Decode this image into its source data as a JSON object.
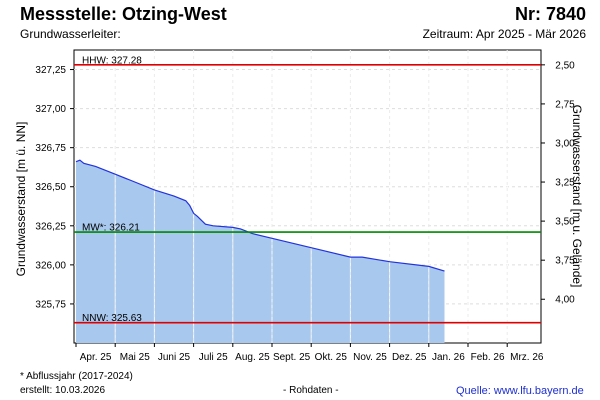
{
  "header": {
    "title": "Messstelle: Otzing-West",
    "number": "Nr: 7840",
    "aquifer": "Grundwasserleiter:",
    "period": "Zeitraum: Apr 2025 - Mär 2026"
  },
  "footer": {
    "footnote": "* Abflussjahr (2017-2024)",
    "created": "erstellt:  10.03.2026",
    "rawdata": "- Rohdaten -",
    "source": "Quelle: www.lfu.bayern.de"
  },
  "colors": {
    "fill": "#a8c8ee",
    "line": "#2233dd",
    "hhw": "#dd0000",
    "mw": "#008800",
    "nnw": "#dd0000",
    "grid": "#dddddd"
  },
  "chart_data": {
    "type": "area",
    "ylabel": "Grundwasserstand [m ü. NN]",
    "y2label": "Grundwasserstand [m u. Gelände]",
    "ylim": [
      325.5,
      327.375
    ],
    "yticks": [
      "327,25",
      "327,00",
      "326,75",
      "326,50",
      "326,25",
      "326,00",
      "325,75"
    ],
    "ytick_values": [
      327.25,
      327.0,
      326.75,
      326.5,
      326.25,
      326.0,
      325.75
    ],
    "y2ticks": [
      "2,50",
      "2,75",
      "3,00",
      "3,25",
      "3,50",
      "3,75",
      "4,00"
    ],
    "y2tick_values": [
      2.5,
      2.75,
      3.0,
      3.25,
      3.5,
      3.75,
      4.0
    ],
    "xticks": [
      "Apr. 25",
      "Mai 25",
      "Juni 25",
      "Juli 25",
      "Aug. 25",
      "Sept. 25",
      "Okt. 25",
      "Nov. 25",
      "Dez. 25",
      "Jan. 26",
      "Feb. 26",
      "Mrz. 26"
    ],
    "x_unit": "months since Apr. 25",
    "x": [
      0.0,
      0.1,
      0.2,
      0.5,
      1.0,
      1.5,
      2.0,
      2.5,
      2.8,
      2.9,
      3.0,
      3.1,
      3.3,
      3.5,
      4.0,
      4.2,
      4.5,
      5.0,
      6.0,
      7.0,
      7.3,
      8.0,
      9.0,
      9.4
    ],
    "y": [
      326.66,
      326.67,
      326.65,
      326.63,
      326.58,
      326.53,
      326.48,
      326.44,
      326.41,
      326.38,
      326.33,
      326.31,
      326.26,
      326.25,
      326.24,
      326.23,
      326.2,
      326.17,
      326.11,
      326.05,
      326.05,
      326.02,
      325.99,
      325.96
    ],
    "reference_lines": [
      {
        "label": "HHW: 327.28",
        "value": 327.28,
        "color": "#dd0000"
      },
      {
        "label": "MW*: 326.21",
        "value": 326.21,
        "color": "#008800"
      },
      {
        "label": "NNW: 325.63",
        "value": 325.63,
        "color": "#dd0000"
      }
    ],
    "grid": true
  }
}
